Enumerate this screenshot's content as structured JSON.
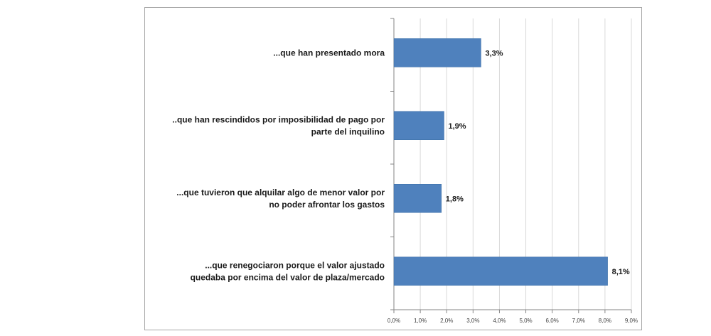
{
  "chart_data": {
    "type": "bar",
    "orientation": "horizontal",
    "categories": [
      [
        "...que han presentado mora"
      ],
      [
        "..que han rescindidos por imposibilidad de pago por",
        "parte del inquilino"
      ],
      [
        "...que tuvieron que alquilar algo de menor valor por",
        "no poder afrontar los gastos"
      ],
      [
        "...que renegociaron porque el valor ajustado",
        "quedaba por encima del valor de plaza/mercado"
      ]
    ],
    "values": [
      3.3,
      1.9,
      1.8,
      8.1
    ],
    "data_labels": [
      "3,3%",
      "1,9%",
      "1,8%",
      "8,1%"
    ],
    "xlim": [
      0,
      9
    ],
    "x_ticks": [
      "0,0%",
      "1,0%",
      "2,0%",
      "3,0%",
      "4,0%",
      "5,0%",
      "6,0%",
      "7,0%",
      "8,0%",
      "9,0%"
    ],
    "grid": true,
    "title": "",
    "xlabel": "",
    "ylabel": "",
    "bar_color": "#4f81bd",
    "grid_color": "#d9d9d9"
  }
}
